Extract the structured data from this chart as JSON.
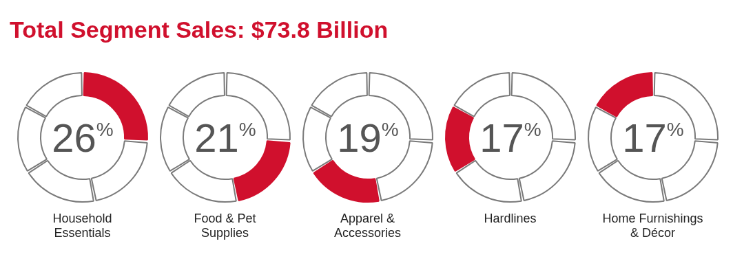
{
  "chart_data": [
    {
      "type": "donut",
      "title": "Total Segment Sales: $73.8 Billion",
      "subtitle": "Household Essentials",
      "categories": [
        null,
        null,
        null,
        null,
        null
      ],
      "values": [
        26,
        21,
        19,
        17,
        17
      ],
      "colors": [
        "#d0102d",
        "#ffffff",
        "#ffffff",
        "#ffffff",
        "#ffffff"
      ],
      "annotations": [
        "26%"
      ]
    },
    {
      "type": "donut",
      "subtitle": "Food & Pet Supplies",
      "categories": [
        null,
        null,
        null,
        null,
        null
      ],
      "values": [
        26,
        21,
        19,
        17,
        17
      ],
      "colors": [
        "#ffffff",
        "#d0102d",
        "#ffffff",
        "#ffffff",
        "#ffffff"
      ],
      "annotations": [
        "21%"
      ]
    },
    {
      "type": "donut",
      "subtitle": "Apparel & Accessories",
      "categories": [
        null,
        null,
        null,
        null,
        null
      ],
      "values": [
        26,
        21,
        19,
        17,
        17
      ],
      "colors": [
        "#ffffff",
        "#ffffff",
        "#d0102d",
        "#ffffff",
        "#ffffff"
      ],
      "annotations": [
        "19%"
      ]
    },
    {
      "type": "donut",
      "subtitle": "Hardlines",
      "categories": [
        null,
        null,
        null,
        null,
        null
      ],
      "values": [
        26,
        21,
        19,
        17,
        17
      ],
      "colors": [
        "#ffffff",
        "#ffffff",
        "#ffffff",
        "#d0102d",
        "#ffffff"
      ],
      "annotations": [
        "17%"
      ]
    },
    {
      "type": "donut",
      "subtitle": "Home Furnishings & Décor",
      "categories": [
        null,
        null,
        null,
        null,
        null
      ],
      "values": [
        26,
        21,
        19,
        17,
        17
      ],
      "colors": [
        "#ffffff",
        "#ffffff",
        "#ffffff",
        "#ffffff",
        "#d0102d"
      ],
      "annotations": [
        "17%"
      ]
    }
  ]
}
